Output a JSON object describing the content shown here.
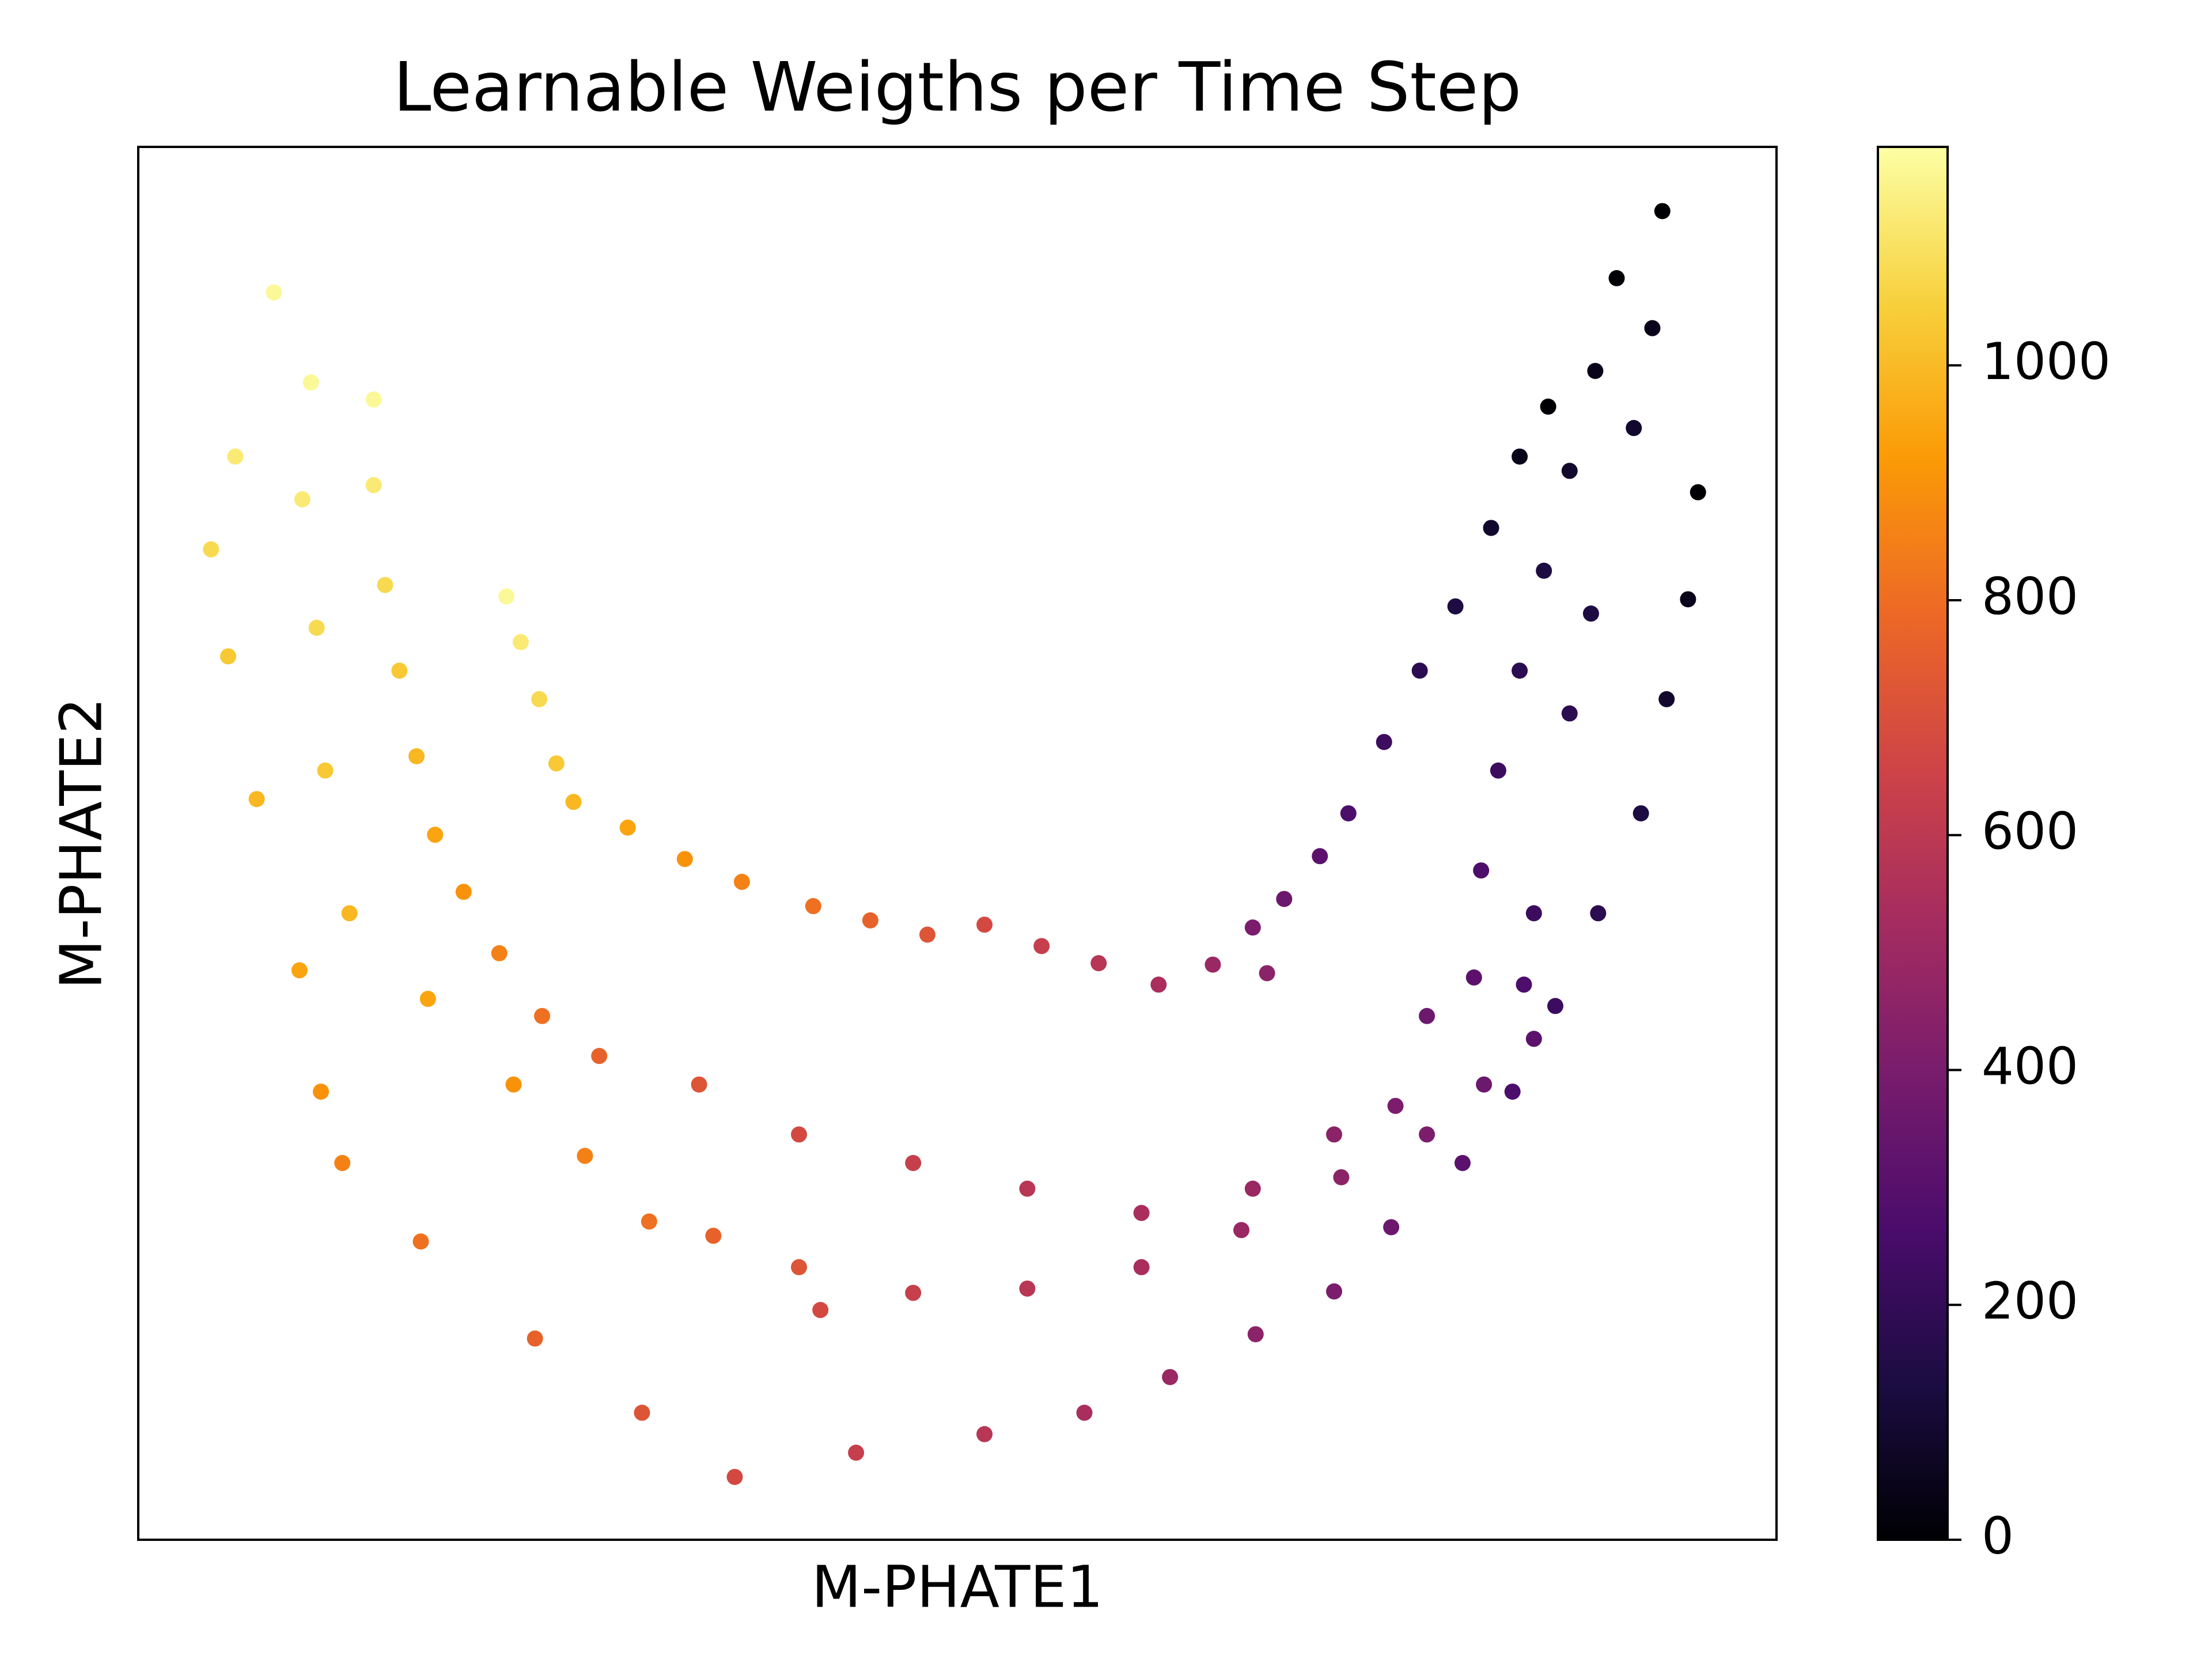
{
  "chart_data": {
    "type": "scatter",
    "title": "Learnable Weigths per Time Step",
    "xlabel": "M-PHATE1",
    "ylabel": "M-PHATE2",
    "xlim": [
      0,
      1148
    ],
    "ylim": [
      0,
      976
    ],
    "x": [
      988,
      968,
      948,
      923,
      898,
      873,
      848,
      828,
      803,
      781,
      791,
      753,
      715,
      673,
      633,
      593,
      553,
      513,
      473,
      423,
      383,
      343,
      305,
      293,
      281,
      268,
      258,
      1036,
      1021,
      1003,
      985,
      968,
      953,
      941,
      936,
      903,
      881,
      838,
      781,
      703,
      623,
      543,
      463,
      393,
      323,
      283,
      253,
      228,
      208,
      195,
      183,
      173,
      165,
      165,
      1068,
      1061,
      1048,
      1018,
      1003,
      978,
      971,
      978,
      943,
      903,
      843,
      773,
      703,
      623,
      543,
      478,
      463,
      403,
      358,
      313,
      263,
      203,
      148,
      131,
      125,
      115,
      121,
      1093,
      1086,
      1071,
      1053,
      1023,
      993,
      963,
      928,
      878,
      838,
      783,
      723,
      663,
      593,
      503,
      418,
      353,
      278,
      198,
      143,
      128,
      113,
      83,
      63,
      51,
      68,
      95
    ],
    "values": [
      794,
      759,
      709,
      654,
      609,
      559,
      509,
      479,
      449,
      429,
      397,
      403,
      389,
      404,
      416,
      431,
      424,
      434,
      444,
      461,
      477,
      499,
      517,
      544,
      589,
      629,
      661,
      884,
      819,
      749,
      679,
      609,
      539,
      469,
      394,
      367,
      304,
      284,
      246,
      229,
      246,
      264,
      284,
      319,
      339,
      367,
      411,
      454,
      494,
      549,
      609,
      669,
      739,
      799,
      931,
      849,
      779,
      649,
      579,
      439,
      389,
      351,
      319,
      284,
      254,
      217,
      191,
      176,
      173,
      161,
      191,
      213,
      223,
      269,
      319,
      379,
      439,
      539,
      639,
      729,
      811,
      734,
      659,
      589,
      509,
      439,
      374,
      314,
      264,
      219,
      174,
      144,
      114,
      89,
      74,
      61,
      44,
      89,
      141,
      209,
      264,
      314,
      399,
      519,
      619,
      694,
      759,
      874
    ],
    "color_values": [
      0,
      45,
      90,
      135,
      180,
      225,
      270,
      315,
      360,
      405,
      450,
      495,
      540,
      585,
      630,
      675,
      720,
      765,
      810,
      855,
      900,
      945,
      990,
      1035,
      1080,
      1125,
      1170,
      0,
      45,
      90,
      135,
      180,
      225,
      270,
      315,
      360,
      405,
      450,
      495,
      540,
      585,
      630,
      675,
      720,
      765,
      810,
      855,
      900,
      945,
      990,
      1035,
      1080,
      1125,
      1170,
      0,
      45,
      90,
      135,
      180,
      225,
      270,
      315,
      360,
      405,
      450,
      495,
      540,
      585,
      630,
      675,
      720,
      765,
      810,
      855,
      900,
      945,
      990,
      1035,
      1080,
      1125,
      1170,
      0,
      45,
      90,
      135,
      180,
      225,
      270,
      315,
      360,
      405,
      450,
      495,
      540,
      585,
      630,
      675,
      720,
      765,
      810,
      855,
      900,
      945,
      990,
      1035,
      1080,
      1125,
      1170
    ],
    "colorbar": {
      "lim": [
        0,
        1186
      ],
      "ticks": [
        0,
        200,
        400,
        600,
        800,
        1000
      ],
      "colormap": [
        "#000004",
        "#1b0c41",
        "#4a0c6b",
        "#781c6d",
        "#a52c60",
        "#cf4446",
        "#ed6925",
        "#fb9b06",
        "#f7d13d",
        "#fcffa4"
      ]
    }
  }
}
